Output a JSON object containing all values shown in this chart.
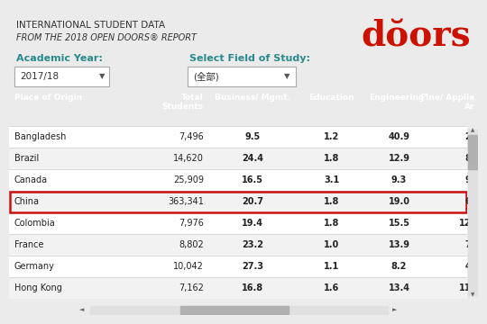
{
  "title_line1": "INTERNATIONAL STUDENT DATA",
  "title_line2": "FROM THE 2018 OPEN DOORS® REPORT",
  "logo_text": "dŏors",
  "academic_year_label": "Academic Year:",
  "academic_year_value": "2017/18",
  "field_label": "Select Field of Study:",
  "field_value": "(全部)",
  "header_bg": "#3d5060",
  "row_bg_white": "#ffffff",
  "row_bg_gray": "#f2f2f2",
  "highlight_row": "China",
  "highlight_border": "#cc1111",
  "columns": [
    "Place of Origin",
    "Total\nStudents",
    "Business/ Mgmt.",
    "Education",
    "Engineering*",
    "Fine/ Applie\nAr"
  ],
  "rows": [
    [
      "Bangladesh",
      "7,496",
      "9.5",
      "1.2",
      "40.9",
      "2."
    ],
    [
      "Brazil",
      "14,620",
      "24.4",
      "1.8",
      "12.9",
      "8."
    ],
    [
      "Canada",
      "25,909",
      "16.5",
      "3.1",
      "9.3",
      "9."
    ],
    [
      "China",
      "363,341",
      "20.7",
      "1.8",
      "19.0",
      "6."
    ],
    [
      "Colombia",
      "7,976",
      "19.4",
      "1.8",
      "15.5",
      "12."
    ],
    [
      "France",
      "8,802",
      "23.2",
      "1.0",
      "13.9",
      "7."
    ],
    [
      "Germany",
      "10,042",
      "27.3",
      "1.1",
      "8.2",
      "4."
    ],
    [
      "Hong Kong",
      "7,162",
      "16.8",
      "1.6",
      "13.4",
      "11."
    ]
  ],
  "top_bg": "#e8e8e8",
  "title_bg": "#e0e0e0",
  "label_color": "#2a8a8a",
  "title_color": "#333333",
  "border_color": "#cccccc",
  "fig_bg": "#ebebeb",
  "logo_color": "#cc1100",
  "scrollbar_bg": "#e0e0e0",
  "scrollbar_thumb": "#b0b0b0"
}
